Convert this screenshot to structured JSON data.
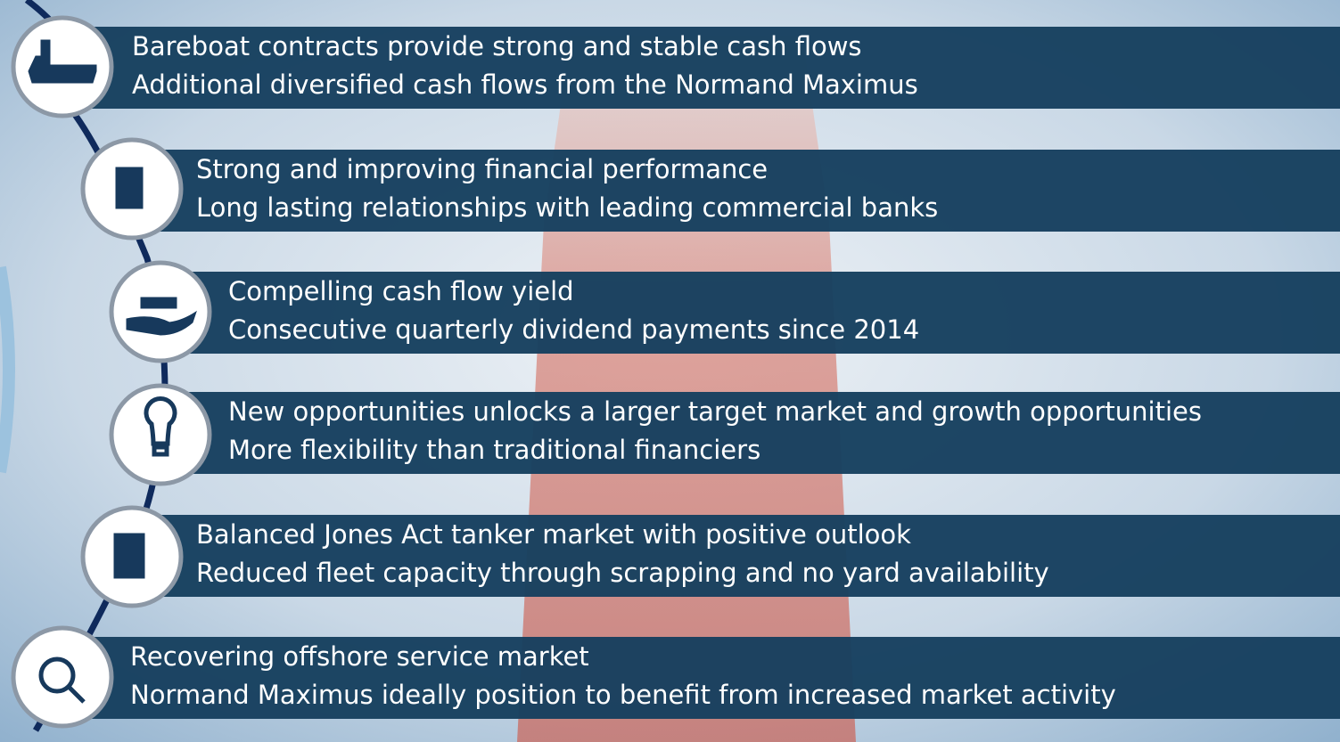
{
  "items": [
    {
      "lines": [
        "Bareboat contracts provide strong and stable cash flows",
        "Additional diversified cash flows from the Normand Maximus"
      ]
    },
    {
      "lines": [
        "Strong and improving financial performance",
        "Long lasting relationships with leading commercial banks"
      ]
    },
    {
      "lines": [
        "Compelling cash flow yield",
        "Consecutive quarterly dividend payments since 2014"
      ]
    },
    {
      "lines": [
        "New opportunities unlocks a larger target market and growth opportunities",
        "More flexibility than traditional financiers"
      ]
    },
    {
      "lines": [
        "Balanced Jones Act tanker market with positive outlook",
        "Reduced fleet capacity through scrapping and no yard availability"
      ]
    },
    {
      "lines": [
        "Recovering offshore service market",
        "Normand Maximus ideally position to benefit from increased market activity"
      ]
    }
  ]
}
